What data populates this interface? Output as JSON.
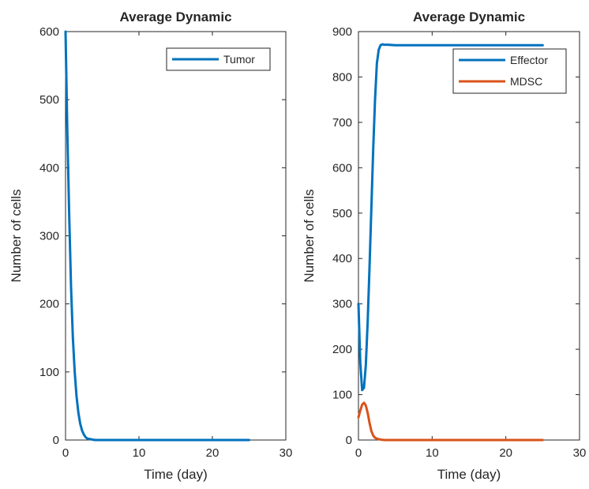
{
  "chart_data": [
    {
      "type": "line",
      "title": "Average Dynamic",
      "xlabel": "Time (day)",
      "ylabel": "Number of cells",
      "xlim": [
        0,
        30
      ],
      "ylim": [
        0,
        600
      ],
      "xticks": [
        "0",
        "10",
        "20",
        "30"
      ],
      "yticks": [
        "0",
        "100",
        "200",
        "300",
        "400",
        "500",
        "600"
      ],
      "grid": false,
      "legend_position": "top-right",
      "series": [
        {
          "name": "Tumor",
          "color": "#0072BD",
          "x": [
            0,
            0.25,
            0.5,
            0.75,
            1.0,
            1.25,
            1.5,
            1.75,
            2.0,
            2.25,
            2.5,
            2.75,
            3.0,
            3.5,
            4,
            5,
            10,
            15,
            20,
            25
          ],
          "y": [
            600,
            450,
            330,
            225,
            150,
            100,
            64,
            40,
            24,
            14,
            8,
            4,
            2,
            1,
            0,
            0,
            0,
            0,
            0,
            0
          ]
        }
      ]
    },
    {
      "type": "line",
      "title": "Average Dynamic",
      "xlabel": "Time (day)",
      "ylabel": "Number of cells",
      "xlim": [
        0,
        30
      ],
      "ylim": [
        0,
        900
      ],
      "xticks": [
        "0",
        "10",
        "20",
        "30"
      ],
      "yticks": [
        "0",
        "100",
        "200",
        "300",
        "400",
        "500",
        "600",
        "700",
        "800",
        "900"
      ],
      "grid": false,
      "legend_position": "top-right",
      "series": [
        {
          "name": "Effector",
          "color": "#0072BD",
          "x": [
            0,
            0.25,
            0.5,
            0.75,
            1.0,
            1.25,
            1.5,
            1.75,
            2.0,
            2.25,
            2.5,
            2.75,
            3.0,
            3.25,
            3.5,
            4,
            5,
            10,
            15,
            20,
            25
          ],
          "y": [
            300,
            170,
            110,
            115,
            165,
            260,
            380,
            510,
            640,
            750,
            830,
            860,
            870,
            872,
            871,
            871,
            870,
            870,
            870,
            870,
            870
          ]
        },
        {
          "name": "MDSC",
          "color": "#D95319",
          "x": [
            0,
            0.25,
            0.5,
            0.75,
            1.0,
            1.25,
            1.5,
            1.75,
            2.0,
            2.25,
            2.5,
            2.75,
            3.0,
            3.5,
            4,
            5,
            10,
            15,
            20,
            25
          ],
          "y": [
            50,
            65,
            78,
            82,
            76,
            60,
            38,
            20,
            10,
            5,
            3,
            2,
            1,
            0,
            0,
            0,
            0,
            0,
            0,
            0
          ]
        }
      ]
    }
  ]
}
